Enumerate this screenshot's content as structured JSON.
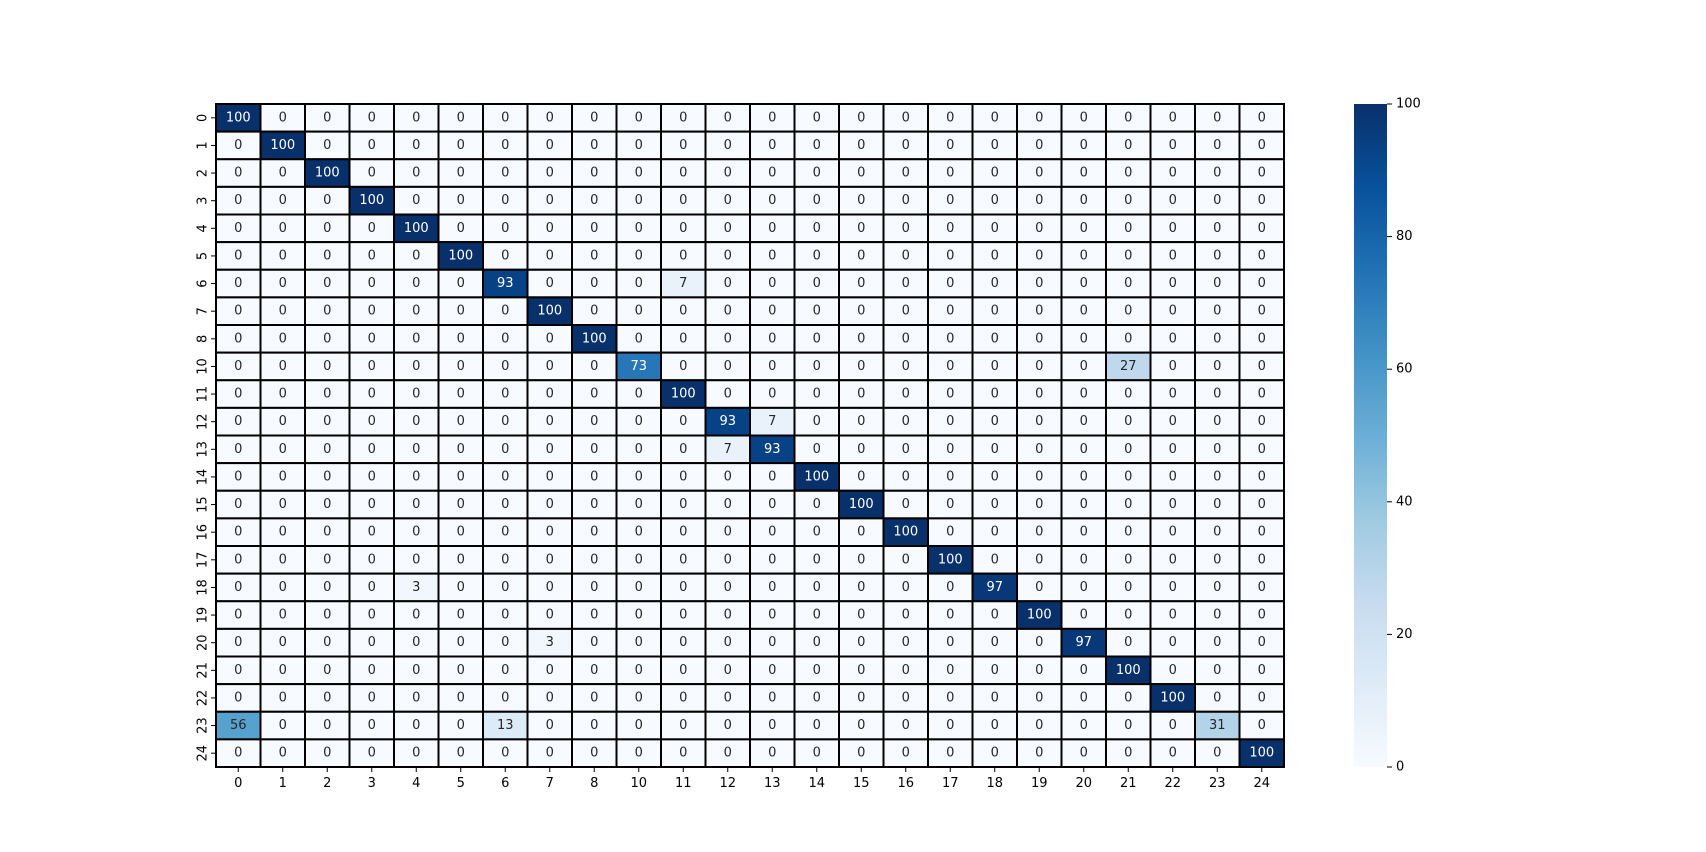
{
  "chart_data": {
    "type": "heatmap",
    "colormap": "Blues",
    "cell_border_color": "#000000",
    "x_tick_labels": [
      "0",
      "1",
      "2",
      "3",
      "4",
      "5",
      "6",
      "7",
      "8",
      "10",
      "11",
      "12",
      "13",
      "14",
      "15",
      "16",
      "17",
      "18",
      "19",
      "20",
      "21",
      "22",
      "23",
      "24"
    ],
    "y_tick_labels": [
      "0",
      "1",
      "2",
      "3",
      "4",
      "5",
      "6",
      "7",
      "8",
      "10",
      "11",
      "12",
      "13",
      "14",
      "15",
      "16",
      "17",
      "18",
      "19",
      "20",
      "21",
      "22",
      "23",
      "24"
    ],
    "values": [
      [
        100,
        0,
        0,
        0,
        0,
        0,
        0,
        0,
        0,
        0,
        0,
        0,
        0,
        0,
        0,
        0,
        0,
        0,
        0,
        0,
        0,
        0,
        0,
        0
      ],
      [
        0,
        100,
        0,
        0,
        0,
        0,
        0,
        0,
        0,
        0,
        0,
        0,
        0,
        0,
        0,
        0,
        0,
        0,
        0,
        0,
        0,
        0,
        0,
        0
      ],
      [
        0,
        0,
        100,
        0,
        0,
        0,
        0,
        0,
        0,
        0,
        0,
        0,
        0,
        0,
        0,
        0,
        0,
        0,
        0,
        0,
        0,
        0,
        0,
        0
      ],
      [
        0,
        0,
        0,
        100,
        0,
        0,
        0,
        0,
        0,
        0,
        0,
        0,
        0,
        0,
        0,
        0,
        0,
        0,
        0,
        0,
        0,
        0,
        0,
        0
      ],
      [
        0,
        0,
        0,
        0,
        100,
        0,
        0,
        0,
        0,
        0,
        0,
        0,
        0,
        0,
        0,
        0,
        0,
        0,
        0,
        0,
        0,
        0,
        0,
        0
      ],
      [
        0,
        0,
        0,
        0,
        0,
        100,
        0,
        0,
        0,
        0,
        0,
        0,
        0,
        0,
        0,
        0,
        0,
        0,
        0,
        0,
        0,
        0,
        0,
        0
      ],
      [
        0,
        0,
        0,
        0,
        0,
        0,
        93,
        0,
        0,
        0,
        7,
        0,
        0,
        0,
        0,
        0,
        0,
        0,
        0,
        0,
        0,
        0,
        0,
        0
      ],
      [
        0,
        0,
        0,
        0,
        0,
        0,
        0,
        100,
        0,
        0,
        0,
        0,
        0,
        0,
        0,
        0,
        0,
        0,
        0,
        0,
        0,
        0,
        0,
        0
      ],
      [
        0,
        0,
        0,
        0,
        0,
        0,
        0,
        0,
        100,
        0,
        0,
        0,
        0,
        0,
        0,
        0,
        0,
        0,
        0,
        0,
        0,
        0,
        0,
        0
      ],
      [
        0,
        0,
        0,
        0,
        0,
        0,
        0,
        0,
        0,
        73,
        0,
        0,
        0,
        0,
        0,
        0,
        0,
        0,
        0,
        0,
        27,
        0,
        0,
        0
      ],
      [
        0,
        0,
        0,
        0,
        0,
        0,
        0,
        0,
        0,
        0,
        100,
        0,
        0,
        0,
        0,
        0,
        0,
        0,
        0,
        0,
        0,
        0,
        0,
        0
      ],
      [
        0,
        0,
        0,
        0,
        0,
        0,
        0,
        0,
        0,
        0,
        0,
        93,
        7,
        0,
        0,
        0,
        0,
        0,
        0,
        0,
        0,
        0,
        0,
        0
      ],
      [
        0,
        0,
        0,
        0,
        0,
        0,
        0,
        0,
        0,
        0,
        0,
        7,
        93,
        0,
        0,
        0,
        0,
        0,
        0,
        0,
        0,
        0,
        0,
        0
      ],
      [
        0,
        0,
        0,
        0,
        0,
        0,
        0,
        0,
        0,
        0,
        0,
        0,
        0,
        100,
        0,
        0,
        0,
        0,
        0,
        0,
        0,
        0,
        0,
        0
      ],
      [
        0,
        0,
        0,
        0,
        0,
        0,
        0,
        0,
        0,
        0,
        0,
        0,
        0,
        0,
        100,
        0,
        0,
        0,
        0,
        0,
        0,
        0,
        0,
        0
      ],
      [
        0,
        0,
        0,
        0,
        0,
        0,
        0,
        0,
        0,
        0,
        0,
        0,
        0,
        0,
        0,
        100,
        0,
        0,
        0,
        0,
        0,
        0,
        0,
        0
      ],
      [
        0,
        0,
        0,
        0,
        0,
        0,
        0,
        0,
        0,
        0,
        0,
        0,
        0,
        0,
        0,
        0,
        100,
        0,
        0,
        0,
        0,
        0,
        0,
        0
      ],
      [
        0,
        0,
        0,
        0,
        3,
        0,
        0,
        0,
        0,
        0,
        0,
        0,
        0,
        0,
        0,
        0,
        0,
        97,
        0,
        0,
        0,
        0,
        0,
        0
      ],
      [
        0,
        0,
        0,
        0,
        0,
        0,
        0,
        0,
        0,
        0,
        0,
        0,
        0,
        0,
        0,
        0,
        0,
        0,
        100,
        0,
        0,
        0,
        0,
        0
      ],
      [
        0,
        0,
        0,
        0,
        0,
        0,
        0,
        3,
        0,
        0,
        0,
        0,
        0,
        0,
        0,
        0,
        0,
        0,
        0,
        97,
        0,
        0,
        0,
        0
      ],
      [
        0,
        0,
        0,
        0,
        0,
        0,
        0,
        0,
        0,
        0,
        0,
        0,
        0,
        0,
        0,
        0,
        0,
        0,
        0,
        0,
        100,
        0,
        0,
        0
      ],
      [
        0,
        0,
        0,
        0,
        0,
        0,
        0,
        0,
        0,
        0,
        0,
        0,
        0,
        0,
        0,
        0,
        0,
        0,
        0,
        0,
        0,
        100,
        0,
        0
      ],
      [
        56,
        0,
        0,
        0,
        0,
        0,
        13,
        0,
        0,
        0,
        0,
        0,
        0,
        0,
        0,
        0,
        0,
        0,
        0,
        0,
        0,
        0,
        31,
        0
      ],
      [
        0,
        0,
        0,
        0,
        0,
        0,
        0,
        0,
        0,
        0,
        0,
        0,
        0,
        0,
        0,
        0,
        0,
        0,
        0,
        0,
        0,
        0,
        0,
        100
      ]
    ],
    "value_range": [
      0,
      100
    ],
    "colorbar": {
      "ticks": [
        0,
        20,
        40,
        60,
        80,
        100
      ]
    },
    "title": "",
    "xlabel": "",
    "ylabel": "",
    "annotations": true,
    "grid": false
  }
}
